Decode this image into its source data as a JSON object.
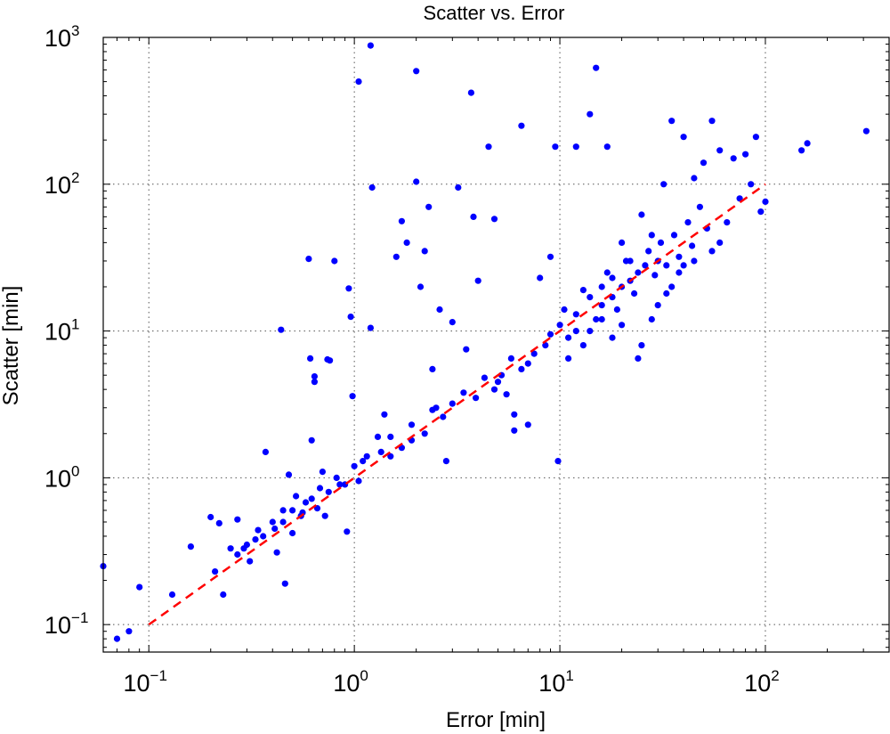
{
  "chart_data": {
    "type": "scatter",
    "title": "Scatter vs. Error",
    "xlabel": "Error [min]",
    "ylabel": "Scatter [min]",
    "xscale": "log",
    "yscale": "log",
    "xlim": [
      0.06,
      400
    ],
    "ylim": [
      0.065,
      1000
    ],
    "x_tick_labels": [
      {
        "value": 0.1,
        "base": "10",
        "exp": "−1"
      },
      {
        "value": 1,
        "base": "10",
        "exp": "0"
      },
      {
        "value": 10,
        "base": "10",
        "exp": "1"
      },
      {
        "value": 100,
        "base": "10",
        "exp": "2"
      }
    ],
    "y_tick_labels": [
      {
        "value": 0.1,
        "base": "10",
        "exp": "−1"
      },
      {
        "value": 1,
        "base": "10",
        "exp": "0"
      },
      {
        "value": 10,
        "base": "10",
        "exp": "1"
      },
      {
        "value": 100,
        "base": "10",
        "exp": "2"
      },
      {
        "value": 1000,
        "base": "10",
        "exp": "3"
      }
    ],
    "grid": true,
    "series": [
      {
        "marker_color": "#0000ff",
        "points": [
          [
            0.06,
            0.25
          ],
          [
            0.07,
            0.08
          ],
          [
            0.08,
            0.09
          ],
          [
            0.09,
            0.18
          ],
          [
            0.13,
            0.16
          ],
          [
            0.16,
            0.34
          ],
          [
            0.2,
            0.54
          ],
          [
            0.21,
            0.23
          ],
          [
            0.22,
            0.49
          ],
          [
            0.23,
            0.16
          ],
          [
            0.25,
            0.33
          ],
          [
            0.27,
            0.52
          ],
          [
            0.3,
            0.35
          ],
          [
            0.31,
            0.27
          ],
          [
            0.34,
            0.44
          ],
          [
            0.37,
            1.5
          ],
          [
            0.4,
            0.5
          ],
          [
            0.42,
            0.31
          ],
          [
            0.44,
            10.2
          ],
          [
            0.45,
            0.6
          ],
          [
            0.46,
            0.19
          ],
          [
            0.48,
            1.05
          ],
          [
            0.5,
            0.42
          ],
          [
            0.52,
            0.75
          ],
          [
            0.55,
            0.55
          ],
          [
            0.58,
            0.68
          ],
          [
            0.6,
            31
          ],
          [
            0.61,
            6.5
          ],
          [
            0.62,
            1.8
          ],
          [
            0.64,
            4.5
          ],
          [
            0.64,
            4.9
          ],
          [
            0.66,
            0.62
          ],
          [
            0.7,
            1.1
          ],
          [
            0.72,
            0.55
          ],
          [
            0.74,
            6.4
          ],
          [
            0.76,
            6.3
          ],
          [
            0.8,
            30
          ],
          [
            0.82,
            1.0
          ],
          [
            0.9,
            0.9
          ],
          [
            0.92,
            0.43
          ],
          [
            0.94,
            19.5
          ],
          [
            0.96,
            12.5
          ],
          [
            0.98,
            3.6
          ],
          [
            1.0,
            1.2
          ],
          [
            1.05,
            500
          ],
          [
            1.1,
            1.3
          ],
          [
            1.2,
            880
          ],
          [
            1.22,
            95
          ],
          [
            1.2,
            10.5
          ],
          [
            1.3,
            1.9
          ],
          [
            1.4,
            2.7
          ],
          [
            1.5,
            1.4
          ],
          [
            1.6,
            32
          ],
          [
            1.7,
            56
          ],
          [
            1.8,
            40
          ],
          [
            1.9,
            2.3
          ],
          [
            2.0,
            590
          ],
          [
            2.0,
            104
          ],
          [
            2.1,
            20
          ],
          [
            2.2,
            35
          ],
          [
            2.3,
            70
          ],
          [
            2.4,
            5.5
          ],
          [
            2.5,
            3.0
          ],
          [
            2.6,
            14
          ],
          [
            2.8,
            1.3
          ],
          [
            3.0,
            11.5
          ],
          [
            3.2,
            95
          ],
          [
            3.5,
            7.5
          ],
          [
            3.7,
            420
          ],
          [
            3.8,
            60
          ],
          [
            4.0,
            22
          ],
          [
            4.5,
            180
          ],
          [
            4.8,
            58
          ],
          [
            5.0,
            4.5
          ],
          [
            5.5,
            3.7
          ],
          [
            6.0,
            2.7
          ],
          [
            6.5,
            250
          ],
          [
            7.0,
            2.3
          ],
          [
            6.0,
            2.1
          ],
          [
            8.0,
            23
          ],
          [
            9.0,
            32
          ],
          [
            9.5,
            180
          ],
          [
            9.8,
            1.3
          ],
          [
            10.5,
            14
          ],
          [
            11.0,
            9.0
          ],
          [
            12.0,
            180
          ],
          [
            13.0,
            19
          ],
          [
            14.0,
            300
          ],
          [
            15.0,
            620
          ],
          [
            16.0,
            12
          ],
          [
            17.0,
            180
          ],
          [
            18.0,
            23
          ],
          [
            20.0,
            40
          ],
          [
            22.0,
            30
          ],
          [
            25.0,
            62
          ],
          [
            28.0,
            45
          ],
          [
            30.0,
            30
          ],
          [
            32.0,
            100
          ],
          [
            35.0,
            270
          ],
          [
            40.0,
            210
          ],
          [
            45.0,
            110
          ],
          [
            50.0,
            140
          ],
          [
            55.0,
            270
          ],
          [
            60.0,
            170
          ],
          [
            70.0,
            150
          ],
          [
            80.0,
            160
          ],
          [
            90.0,
            210
          ],
          [
            100.0,
            76
          ],
          [
            150.0,
            170
          ],
          [
            160.0,
            190
          ],
          [
            310.0,
            230
          ],
          [
            14.0,
            10
          ],
          [
            15.0,
            12
          ],
          [
            16.0,
            15
          ],
          [
            18.0,
            17
          ],
          [
            20.0,
            20
          ],
          [
            22.0,
            22
          ],
          [
            24.0,
            25
          ],
          [
            26.0,
            28
          ],
          [
            12.0,
            13
          ],
          [
            13.0,
            8
          ],
          [
            17.0,
            25
          ],
          [
            19.0,
            14
          ],
          [
            21.0,
            30
          ],
          [
            23.0,
            18
          ],
          [
            27.0,
            35
          ],
          [
            29.0,
            24
          ],
          [
            31.0,
            40
          ],
          [
            33.0,
            28
          ],
          [
            36.0,
            45
          ],
          [
            38.0,
            32
          ],
          [
            42.0,
            55
          ],
          [
            44.0,
            38
          ],
          [
            48.0,
            70
          ],
          [
            52.0,
            50
          ],
          [
            11.0,
            6.5
          ],
          [
            10.0,
            11
          ],
          [
            9.0,
            9.5
          ],
          [
            8.5,
            8
          ],
          [
            7.5,
            7.0
          ],
          [
            7.0,
            6.0
          ],
          [
            6.5,
            5.5
          ],
          [
            5.8,
            6.5
          ],
          [
            5.2,
            5.0
          ],
          [
            4.8,
            4.0
          ],
          [
            4.3,
            4.8
          ],
          [
            3.9,
            3.5
          ],
          [
            3.4,
            3.8
          ],
          [
            3.0,
            3.2
          ],
          [
            2.7,
            2.6
          ],
          [
            2.4,
            2.9
          ],
          [
            2.2,
            2.0
          ],
          [
            1.9,
            1.8
          ],
          [
            1.7,
            1.6
          ],
          [
            1.5,
            1.9
          ],
          [
            1.35,
            1.5
          ],
          [
            1.15,
            1.4
          ],
          [
            1.05,
            0.95
          ],
          [
            0.85,
            0.9
          ],
          [
            0.75,
            0.8
          ],
          [
            0.68,
            0.85
          ],
          [
            0.62,
            0.72
          ],
          [
            0.56,
            0.58
          ],
          [
            0.5,
            0.6
          ],
          [
            0.45,
            0.5
          ],
          [
            0.41,
            0.45
          ],
          [
            0.36,
            0.4
          ],
          [
            0.33,
            0.38
          ],
          [
            0.29,
            0.33
          ],
          [
            0.27,
            0.3
          ],
          [
            25.0,
            8
          ],
          [
            30.0,
            15
          ],
          [
            35.0,
            20
          ],
          [
            40.0,
            28
          ],
          [
            20.0,
            11
          ],
          [
            18.0,
            9
          ],
          [
            16.0,
            20
          ],
          [
            14.0,
            17
          ],
          [
            12.0,
            10
          ],
          [
            24.0,
            6.5
          ],
          [
            28.0,
            12
          ],
          [
            33.0,
            18
          ],
          [
            38.0,
            25
          ],
          [
            45.0,
            30
          ],
          [
            55.0,
            35
          ],
          [
            60.0,
            40
          ],
          [
            65.0,
            55
          ],
          [
            75.0,
            80
          ],
          [
            85.0,
            100
          ],
          [
            95.0,
            65
          ]
        ]
      }
    ],
    "fit_line": {
      "from": [
        0.1,
        0.1
      ],
      "to": [
        100,
        100
      ],
      "color": "#ff0000",
      "style": "dashed"
    }
  }
}
